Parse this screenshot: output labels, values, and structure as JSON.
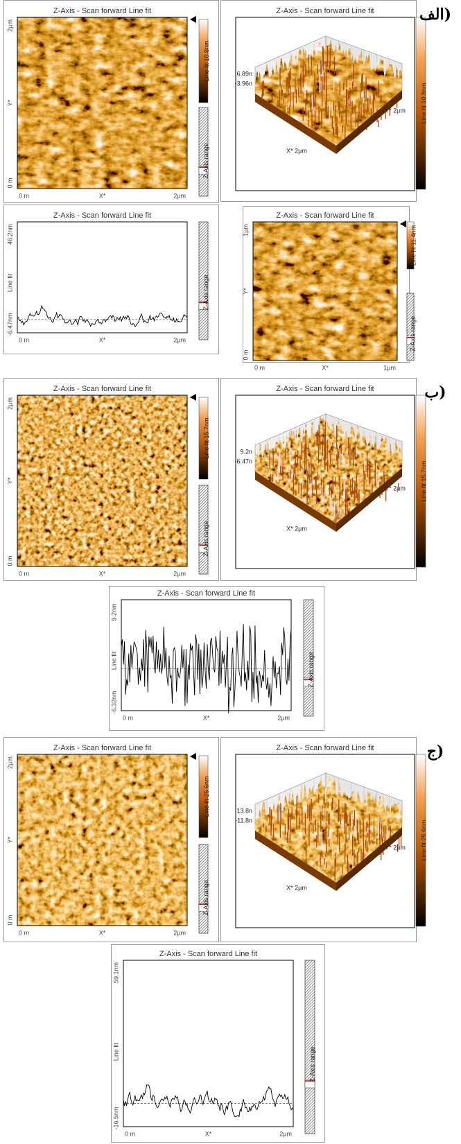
{
  "sections": [
    "(الف",
    "(ب",
    "(ج"
  ],
  "panels": [
    {
      "kind": "image",
      "title": "Z-Axis - Scan forward   Line fit",
      "y_axis": [
        "2µm",
        "Y*",
        "0 m"
      ],
      "x_axis": [
        "0 m",
        "X*",
        "2µm"
      ],
      "colorbar": "Line fit 10.8nm",
      "range": "Z-Axis range"
    },
    {
      "kind": "3d",
      "title": "Z-Axis - Scan forward   Line fit",
      "z_axis": [
        "6.89n",
        "-3.96n"
      ],
      "x_label": "X* 2µm",
      "y_label": "Y* 2µm",
      "colorbar": "Line fit 10.8nm"
    },
    {
      "kind": "profile",
      "title": "Z-Axis - Scan forward   Line fit",
      "y_axis": [
        "46.2nm",
        "Line fit",
        "-6.47nm"
      ],
      "x_axis": [
        "0 m",
        "X*",
        "2µm"
      ],
      "range": "Z-Axis range"
    },
    {
      "kind": "image",
      "title": "Z-Axis - Scan forward   Line fit",
      "y_axis": [
        "1µm",
        "Y*",
        "0 m"
      ],
      "x_axis": [
        "0 m",
        "X*",
        "1µm"
      ],
      "colorbar": "Line fit 11.4nm",
      "range": "Z-Axis range"
    },
    {
      "kind": "image",
      "title": "Z-Axis - Scan forward   Line fit",
      "y_axis": [
        "2µm",
        "Y*",
        "0 m"
      ],
      "x_axis": [
        "0 m",
        "X*",
        "2µm"
      ],
      "colorbar": "Line fit 15.7nm",
      "range": "Z-Axis range"
    },
    {
      "kind": "3d",
      "title": "Z-Axis - Scan forward   Line fit",
      "z_axis": [
        "9.2n",
        "-6.47n"
      ],
      "x_label": "X* 2µm",
      "y_label": "Y* 2µm",
      "colorbar": "Line fit 15.7nm"
    },
    {
      "kind": "profile",
      "title": "Z-Axis - Scan forward   Line fit",
      "y_axis": [
        "9.2nm",
        "Line fit",
        "-6.32nm"
      ],
      "x_axis": [
        "0 m",
        "X*",
        "2µm"
      ],
      "range": "Z-Axis range"
    },
    {
      "kind": "image",
      "title": "Z-Axis - Scan forward   Line fit",
      "y_axis": [
        "2µm",
        "Y*",
        "0 m"
      ],
      "x_axis": [
        "0 m",
        "X*",
        "2µm"
      ],
      "colorbar": "Line fit 25.6nm",
      "range": "Z-Axis range"
    },
    {
      "kind": "3d",
      "title": "Z-Axis - Scan forward   Line fit",
      "z_axis": [
        "13.8n",
        "-11.8n"
      ],
      "x_label": "X* 2µm",
      "y_label": "Y* 2µm",
      "colorbar": "Line fit 25.6nm"
    },
    {
      "kind": "profile",
      "title": "Z-Axis - Scan forward   Line fit",
      "y_axis": [
        "59.1nm",
        "Line fit",
        "-16.5nm"
      ],
      "x_axis": [
        "0 m",
        "X*",
        "2µm"
      ],
      "range": "Z-Axis range"
    }
  ]
}
